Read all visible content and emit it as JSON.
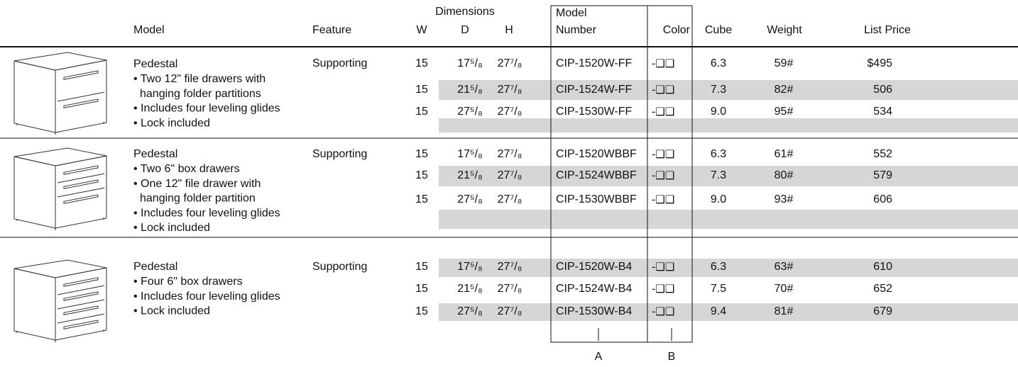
{
  "header": {
    "model": "Model",
    "feature": "Feature",
    "dimensions": "Dimensions",
    "w": "W",
    "d": "D",
    "h": "H",
    "model_number": [
      "Model",
      "Number"
    ],
    "color": "Color",
    "cube": "Cube",
    "weight": "Weight",
    "list_price": "List Price"
  },
  "groups": [
    {
      "lines": [
        "Pedestal",
        "• Two 12\" file drawers with",
        "hanging folder partitions",
        "• Includes four leveling glides",
        "• Lock included"
      ],
      "feature": "Supporting",
      "rows": [
        [
          "15",
          "17⁵/₈",
          "27⁷/₈",
          "CIP-1520W-FF",
          "-❑❑",
          "6.3",
          "59#",
          "$495"
        ],
        [
          "15",
          "21⁵/₈",
          "27⁷/₈",
          "CIP-1524W-FF",
          "-❑❑",
          "7.3",
          "82#",
          "506"
        ],
        [
          "15",
          "27⁵/₈",
          "27⁷/₈",
          "CIP-1530W-FF",
          "-❑❑",
          "9.0",
          "95#",
          "534"
        ]
      ]
    },
    {
      "lines": [
        "Pedestal",
        "• Two 6\" box drawers",
        "• One 12\" file drawer with",
        "hanging folder partition",
        "• Includes four leveling glides",
        "• Lock included"
      ],
      "feature": "Supporting",
      "rows": [
        [
          "15",
          "17⁵/₈",
          "27⁷/₈",
          "CIP-1520WBBF",
          "-❑❑",
          "6.3",
          "61#",
          "552"
        ],
        [
          "15",
          "21⁵/₈",
          "27⁷/₈",
          "CIP-1524WBBF",
          "-❑❑",
          "7.3",
          "80#",
          "579"
        ],
        [
          "15",
          "27⁵/₈",
          "27⁷/₈",
          "CIP-1530WBBF",
          "-❑❑",
          "9.0",
          "93#",
          "606"
        ]
      ]
    },
    {
      "lines": [
        "Pedestal",
        "• Four 6\" box drawers",
        "• Includes four leveling glides",
        "• Lock included"
      ],
      "feature": "Supporting",
      "rows": [
        [
          "15",
          "17⁵/₈",
          "27⁷/₈",
          "CIP-1520W-B4",
          "-❑❑",
          "6.3",
          "63#",
          "610"
        ],
        [
          "15",
          "21⁵/₈",
          "27⁷/₈",
          "CIP-1524W-B4",
          "-❑❑",
          "7.5",
          "70#",
          "652"
        ],
        [
          "15",
          "27⁵/₈",
          "27⁷/₈",
          "CIP-1530W-B4",
          "-❑❑",
          "9.4",
          "81#",
          "679"
        ]
      ]
    }
  ],
  "footer": {
    "a": "A",
    "b": "B"
  }
}
